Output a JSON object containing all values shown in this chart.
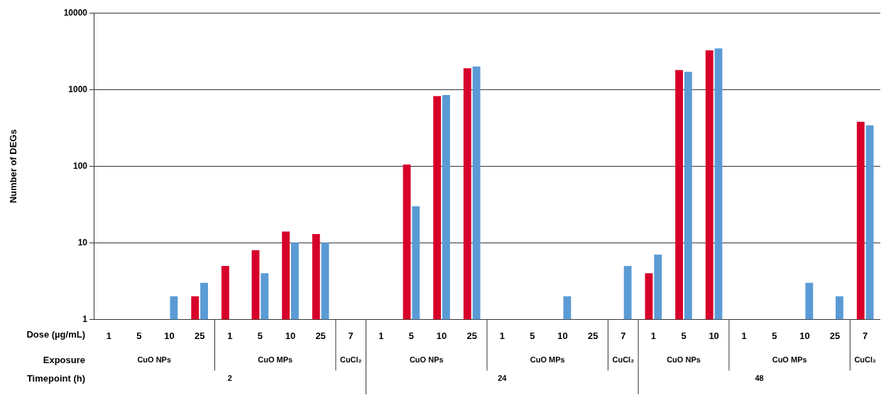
{
  "chart_data": {
    "type": "bar",
    "ylabel": "Number of DEGs",
    "categories": [
      "1",
      "5",
      "10",
      "25",
      "1",
      "5",
      "10",
      "25",
      "7",
      "1",
      "5",
      "10",
      "25",
      "1",
      "5",
      "10",
      "25",
      "7",
      "1",
      "5",
      "10",
      "1",
      "5",
      "10",
      "25",
      "7"
    ],
    "series": [
      {
        "color": "#d7002a",
        "values": [
          null,
          null,
          null,
          2,
          5,
          8,
          14,
          13,
          null,
          null,
          105,
          820,
          1900,
          null,
          null,
          null,
          null,
          null,
          4,
          1800,
          3250,
          null,
          null,
          null,
          null,
          380
        ]
      },
      {
        "color": "#5b9bd5",
        "values": [
          null,
          null,
          2,
          3,
          null,
          4,
          10,
          10,
          null,
          null,
          30,
          850,
          2000,
          null,
          null,
          2,
          null,
          5,
          7,
          1700,
          3450,
          null,
          null,
          3,
          2,
          340
        ]
      }
    ],
    "log": "y",
    "ylim": [
      1,
      10000
    ],
    "yticks": [
      1,
      10,
      100,
      1000,
      10000
    ],
    "grid": "y",
    "legend": false,
    "annotations": [
      "Dose (µg/mL)",
      "Exposure",
      "Timepoint (h)",
      "CuO NPs",
      "CuO MPs",
      "CuCl₂",
      "CuO NPs",
      "CuO MPs",
      "CuCl₂",
      "CuO NPs",
      "CuO MPs",
      "CuCl₂",
      "2",
      "24",
      "48"
    ]
  }
}
